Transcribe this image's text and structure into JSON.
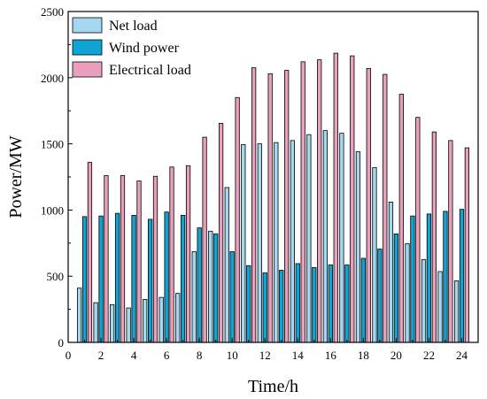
{
  "chart_data": {
    "type": "bar",
    "title": "",
    "xlabel": "Time/h",
    "ylabel": "Power/MW",
    "x": [
      1,
      2,
      3,
      4,
      5,
      6,
      7,
      8,
      9,
      10,
      11,
      12,
      13,
      14,
      15,
      16,
      17,
      18,
      19,
      20,
      21,
      22,
      23,
      24
    ],
    "xlim": [
      0,
      25
    ],
    "xticks": [
      0,
      2,
      4,
      6,
      8,
      10,
      12,
      14,
      16,
      18,
      20,
      22,
      24
    ],
    "ylim": [
      0,
      2500
    ],
    "yticks": [
      0,
      500,
      1000,
      1500,
      2000,
      2500
    ],
    "grid": false,
    "legend_position": "top-left",
    "series": [
      {
        "name": "Net load",
        "color": "#a5d8f0",
        "values": [
          410,
          300,
          285,
          260,
          325,
          340,
          370,
          685,
          840,
          1170,
          1495,
          1500,
          1510,
          1525,
          1570,
          1600,
          1580,
          1440,
          1320,
          1060,
          745,
          625,
          535,
          465
        ]
      },
      {
        "name": "Wind power",
        "color": "#0fa3d6",
        "values": [
          950,
          955,
          975,
          960,
          930,
          985,
          960,
          865,
          820,
          685,
          580,
          525,
          545,
          595,
          565,
          585,
          585,
          635,
          705,
          820,
          955,
          970,
          990,
          1005
        ]
      },
      {
        "name": "Electrical load",
        "color": "#e9a0bd",
        "values": [
          1360,
          1260,
          1260,
          1220,
          1255,
          1325,
          1335,
          1550,
          1655,
          1850,
          2075,
          2030,
          2055,
          2120,
          2135,
          2185,
          2165,
          2070,
          2025,
          1875,
          1700,
          1590,
          1525,
          1470
        ]
      }
    ]
  }
}
